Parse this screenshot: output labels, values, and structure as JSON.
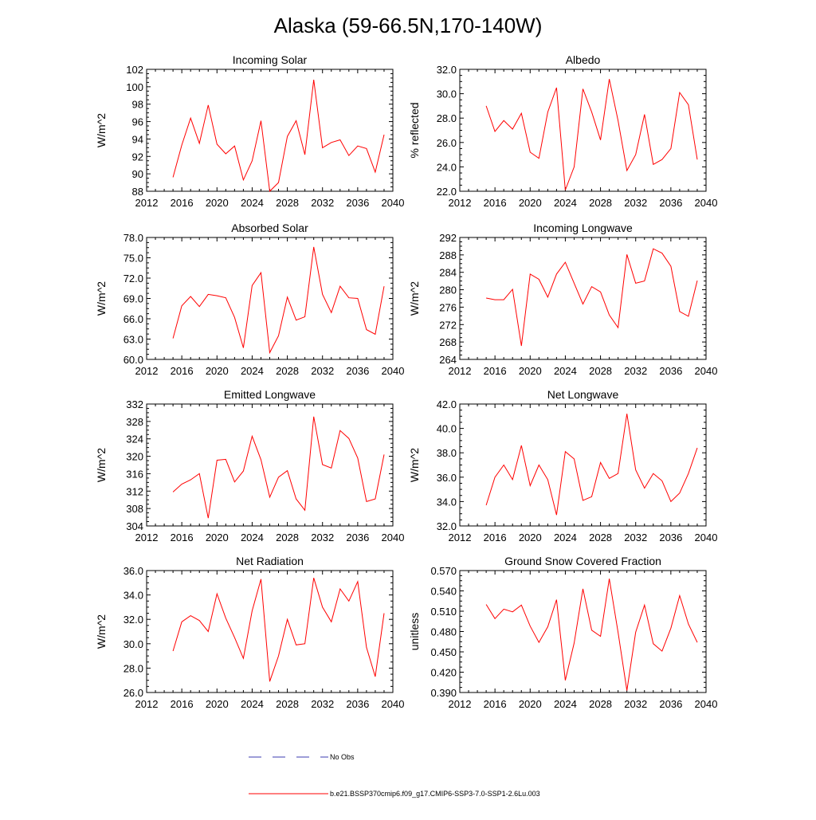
{
  "page": {
    "title": "Alaska (59-66.5N,170-140W)"
  },
  "legend": {
    "obs_label": "No Obs",
    "obs_color": "#3b3bb0",
    "model_label": "b.e21.BSSP370cmip6.f09_g17.CMIP6-SSP3-7.0-SSP1-2.6Lu.003",
    "model_color": "#ff0000"
  },
  "chart_data": [
    {
      "type": "line",
      "title": "Incoming Solar",
      "ylabel": "W/m^2",
      "xlim": [
        2012,
        2040
      ],
      "ylim": [
        88,
        102
      ],
      "xticks": [
        "2012",
        "2016",
        "2020",
        "2024",
        "2028",
        "2032",
        "2036",
        "2040"
      ],
      "yticks": [
        "88",
        "90",
        "92",
        "94",
        "96",
        "98",
        "100",
        "102"
      ],
      "x": [
        2015,
        2016,
        2017,
        2018,
        2019,
        2020,
        2021,
        2022,
        2023,
        2024,
        2025,
        2026,
        2027,
        2028,
        2029,
        2030,
        2031,
        2032,
        2033,
        2034,
        2035,
        2036,
        2037,
        2038,
        2039
      ],
      "series": [
        {
          "values": [
            89.6,
            93.3,
            96.4,
            93.5,
            97.9,
            93.4,
            92.3,
            93.2,
            89.3,
            91.5,
            96.1,
            88.0,
            89.0,
            94.3,
            96.1,
            92.2,
            100.8,
            93.0,
            93.6,
            93.9,
            92.1,
            93.2,
            92.9,
            90.2,
            94.5
          ]
        }
      ]
    },
    {
      "type": "line",
      "title": "Albedo",
      "ylabel": "% reflected",
      "xlim": [
        2012,
        2040
      ],
      "ylim": [
        22,
        32
      ],
      "xticks": [
        "2012",
        "2016",
        "2020",
        "2024",
        "2028",
        "2032",
        "2036",
        "2040"
      ],
      "yticks": [
        "22.0",
        "24.0",
        "26.0",
        "28.0",
        "30.0",
        "32.0"
      ],
      "x": [
        2015,
        2016,
        2017,
        2018,
        2019,
        2020,
        2021,
        2022,
        2023,
        2024,
        2025,
        2026,
        2027,
        2028,
        2029,
        2030,
        2031,
        2032,
        2033,
        2034,
        2035,
        2036,
        2037,
        2038,
        2039
      ],
      "series": [
        {
          "values": [
            29.0,
            26.9,
            27.8,
            27.1,
            28.4,
            25.2,
            24.7,
            28.5,
            30.5,
            22.1,
            24.0,
            30.4,
            28.5,
            26.2,
            31.2,
            27.8,
            23.7,
            25.0,
            28.3,
            24.2,
            24.6,
            25.5,
            30.1,
            29.1,
            24.6
          ]
        }
      ]
    },
    {
      "type": "line",
      "title": "Absorbed Solar",
      "ylabel": "W/m^2",
      "xlim": [
        2012,
        2040
      ],
      "ylim": [
        60,
        78
      ],
      "xticks": [
        "2012",
        "2016",
        "2020",
        "2024",
        "2028",
        "2032",
        "2036",
        "2040"
      ],
      "yticks": [
        "60.0",
        "63.0",
        "66.0",
        "69.0",
        "72.0",
        "75.0",
        "78.0"
      ],
      "x": [
        2015,
        2016,
        2017,
        2018,
        2019,
        2020,
        2021,
        2022,
        2023,
        2024,
        2025,
        2026,
        2027,
        2028,
        2029,
        2030,
        2031,
        2032,
        2033,
        2034,
        2035,
        2036,
        2037,
        2038,
        2039
      ],
      "series": [
        {
          "values": [
            63.1,
            67.9,
            69.3,
            67.8,
            69.6,
            69.4,
            69.1,
            66.2,
            61.7,
            70.9,
            72.8,
            61.0,
            63.5,
            69.2,
            65.8,
            66.3,
            76.6,
            69.6,
            66.9,
            70.8,
            69.1,
            69.0,
            64.4,
            63.7,
            70.8
          ]
        }
      ]
    },
    {
      "type": "line",
      "title": "Incoming Longwave",
      "ylabel": "W/m^2",
      "xlim": [
        2012,
        2040
      ],
      "ylim": [
        264,
        292
      ],
      "xticks": [
        "2012",
        "2016",
        "2020",
        "2024",
        "2028",
        "2032",
        "2036",
        "2040"
      ],
      "yticks": [
        "264",
        "268",
        "272",
        "276",
        "280",
        "284",
        "288",
        "292"
      ],
      "x": [
        2015,
        2016,
        2017,
        2018,
        2019,
        2020,
        2021,
        2022,
        2023,
        2024,
        2025,
        2026,
        2027,
        2028,
        2029,
        2030,
        2031,
        2032,
        2033,
        2034,
        2035,
        2036,
        2037,
        2038,
        2039
      ],
      "series": [
        {
          "values": [
            278.1,
            277.7,
            277.7,
            280.1,
            267.1,
            283.6,
            282.4,
            278.3,
            283.6,
            286.3,
            281.5,
            276.7,
            280.7,
            279.5,
            274.2,
            271.3,
            288.1,
            281.5,
            282.0,
            289.4,
            288.4,
            285.4,
            275.0,
            273.9,
            282.1
          ]
        }
      ]
    },
    {
      "type": "line",
      "title": "Emitted Longwave",
      "ylabel": "W/m^2",
      "xlim": [
        2012,
        2040
      ],
      "ylim": [
        304,
        332
      ],
      "xticks": [
        "2012",
        "2016",
        "2020",
        "2024",
        "2028",
        "2032",
        "2036",
        "2040"
      ],
      "yticks": [
        "304",
        "308",
        "312",
        "316",
        "320",
        "324",
        "328",
        "332"
      ],
      "x": [
        2015,
        2016,
        2017,
        2018,
        2019,
        2020,
        2021,
        2022,
        2023,
        2024,
        2025,
        2026,
        2027,
        2028,
        2029,
        2030,
        2031,
        2032,
        2033,
        2034,
        2035,
        2036,
        2037,
        2038,
        2039
      ],
      "series": [
        {
          "values": [
            311.8,
            313.6,
            314.6,
            316.0,
            305.8,
            319.1,
            319.3,
            314.1,
            316.6,
            324.6,
            319.2,
            310.6,
            315.2,
            316.7,
            310.2,
            307.6,
            329.1,
            318.1,
            317.3,
            325.9,
            324.1,
            319.6,
            309.6,
            310.2,
            320.4
          ]
        }
      ]
    },
    {
      "type": "line",
      "title": "Net Longwave",
      "ylabel": "W/m^2",
      "xlim": [
        2012,
        2040
      ],
      "ylim": [
        32,
        42
      ],
      "xticks": [
        "2012",
        "2016",
        "2020",
        "2024",
        "2028",
        "2032",
        "2036",
        "2040"
      ],
      "yticks": [
        "32.0",
        "34.0",
        "36.0",
        "38.0",
        "40.0",
        "42.0"
      ],
      "x": [
        2015,
        2016,
        2017,
        2018,
        2019,
        2020,
        2021,
        2022,
        2023,
        2024,
        2025,
        2026,
        2027,
        2028,
        2029,
        2030,
        2031,
        2032,
        2033,
        2034,
        2035,
        2036,
        2037,
        2038,
        2039
      ],
      "series": [
        {
          "values": [
            33.7,
            36.0,
            37.0,
            35.8,
            38.6,
            35.3,
            37.0,
            35.8,
            32.9,
            38.1,
            37.5,
            34.1,
            34.4,
            37.2,
            35.9,
            36.3,
            41.2,
            36.6,
            35.1,
            36.3,
            35.7,
            34.0,
            34.7,
            36.3,
            38.4
          ]
        }
      ]
    },
    {
      "type": "line",
      "title": "Net Radiation",
      "ylabel": "W/m^2",
      "xlim": [
        2012,
        2040
      ],
      "ylim": [
        26,
        36
      ],
      "xticks": [
        "2012",
        "2016",
        "2020",
        "2024",
        "2028",
        "2032",
        "2036",
        "2040"
      ],
      "yticks": [
        "26.0",
        "28.0",
        "30.0",
        "32.0",
        "34.0",
        "36.0"
      ],
      "x": [
        2015,
        2016,
        2017,
        2018,
        2019,
        2020,
        2021,
        2022,
        2023,
        2024,
        2025,
        2026,
        2027,
        2028,
        2029,
        2030,
        2031,
        2032,
        2033,
        2034,
        2035,
        2036,
        2037,
        2038,
        2039
      ],
      "series": [
        {
          "values": [
            29.4,
            31.8,
            32.3,
            31.9,
            31.0,
            34.1,
            32.1,
            30.5,
            28.8,
            32.7,
            35.3,
            26.9,
            29.0,
            32.0,
            29.9,
            30.0,
            35.4,
            33.0,
            31.8,
            34.5,
            33.5,
            35.1,
            29.7,
            27.3,
            32.5
          ]
        }
      ]
    },
    {
      "type": "line",
      "title": "Ground Snow Covered Fraction",
      "ylabel": "unitless",
      "xlim": [
        2012,
        2040
      ],
      "ylim": [
        0.39,
        0.57
      ],
      "xticks": [
        "2012",
        "2016",
        "2020",
        "2024",
        "2028",
        "2032",
        "2036",
        "2040"
      ],
      "yticks": [
        "0.390",
        "0.420",
        "0.450",
        "0.480",
        "0.510",
        "0.540",
        "0.570"
      ],
      "x": [
        2015,
        2016,
        2017,
        2018,
        2019,
        2020,
        2021,
        2022,
        2023,
        2024,
        2025,
        2026,
        2027,
        2028,
        2029,
        2030,
        2031,
        2032,
        2033,
        2034,
        2035,
        2036,
        2037,
        2038,
        2039
      ],
      "series": [
        {
          "values": [
            0.52,
            0.499,
            0.513,
            0.509,
            0.519,
            0.488,
            0.464,
            0.487,
            0.527,
            0.408,
            0.463,
            0.543,
            0.482,
            0.473,
            0.558,
            0.479,
            0.393,
            0.479,
            0.519,
            0.462,
            0.451,
            0.485,
            0.533,
            0.491,
            0.464
          ]
        }
      ]
    }
  ]
}
